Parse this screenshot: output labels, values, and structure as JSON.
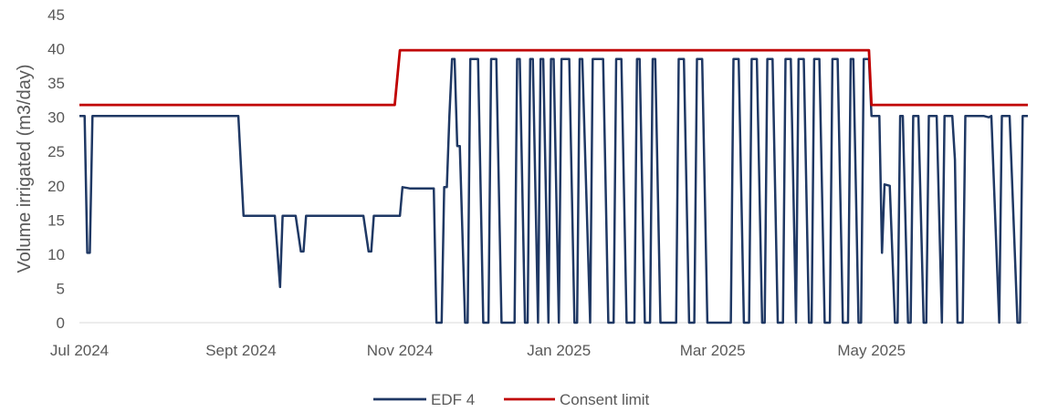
{
  "chart_data": {
    "type": "line",
    "title": "",
    "xlabel": "",
    "ylabel": "Volume irrigated (m3/day)",
    "ylim": [
      0,
      45
    ],
    "yticks": [
      0,
      5,
      10,
      15,
      20,
      25,
      30,
      35,
      40,
      45
    ],
    "xlim": [
      "2024-07-01",
      "2025-06-30"
    ],
    "xticks": [
      {
        "date": "2024-07-01",
        "label": "Jul 2024"
      },
      {
        "date": "2024-09-01",
        "label": "Sept 2024"
      },
      {
        "date": "2024-11-01",
        "label": "Nov 2024"
      },
      {
        "date": "2025-01-01",
        "label": "Jan 2025"
      },
      {
        "date": "2025-03-01",
        "label": "Mar 2025"
      },
      {
        "date": "2025-05-01",
        "label": "May 2025"
      }
    ],
    "grid": false,
    "legend": "bottom",
    "series": [
      {
        "name": "EDF 4",
        "color": "#1f3864",
        "points": [
          [
            "2024-07-01",
            30.2
          ],
          [
            "2024-07-03",
            30.2
          ],
          [
            "2024-07-04",
            10.2
          ],
          [
            "2024-07-05",
            10.2
          ],
          [
            "2024-07-06",
            30.2
          ],
          [
            "2024-08-31",
            30.2
          ],
          [
            "2024-09-02",
            15.6
          ],
          [
            "2024-09-14",
            15.6
          ],
          [
            "2024-09-16",
            5.2
          ],
          [
            "2024-09-17",
            15.6
          ],
          [
            "2024-09-22",
            15.6
          ],
          [
            "2024-09-24",
            10.4
          ],
          [
            "2024-09-25",
            10.4
          ],
          [
            "2024-09-26",
            15.6
          ],
          [
            "2024-10-18",
            15.6
          ],
          [
            "2024-10-20",
            10.4
          ],
          [
            "2024-10-21",
            10.4
          ],
          [
            "2024-10-22",
            15.6
          ],
          [
            "2024-10-30",
            15.6
          ],
          [
            "2024-11-01",
            15.6
          ],
          [
            "2024-11-02",
            19.8
          ],
          [
            "2024-11-05",
            19.6
          ],
          [
            "2024-11-13",
            19.6
          ],
          [
            "2024-11-14",
            19.6
          ],
          [
            "2024-11-15",
            0.0
          ],
          [
            "2024-11-17",
            0.0
          ],
          [
            "2024-11-18",
            19.8
          ],
          [
            "2024-11-19",
            19.8
          ],
          [
            "2024-11-20",
            30.2
          ],
          [
            "2024-11-21",
            38.5
          ],
          [
            "2024-11-22",
            38.5
          ],
          [
            "2024-11-23",
            25.8
          ],
          [
            "2024-11-24",
            25.8
          ],
          [
            "2024-11-26",
            0.0
          ],
          [
            "2024-11-27",
            0.0
          ],
          [
            "2024-11-28",
            38.5
          ],
          [
            "2024-12-01",
            38.5
          ],
          [
            "2024-12-03",
            0.0
          ],
          [
            "2024-12-05",
            0.0
          ],
          [
            "2024-12-06",
            38.5
          ],
          [
            "2024-12-08",
            38.5
          ],
          [
            "2024-12-10",
            0.0
          ],
          [
            "2024-12-15",
            0.0
          ],
          [
            "2024-12-16",
            38.5
          ],
          [
            "2024-12-17",
            38.5
          ],
          [
            "2024-12-19",
            0.0
          ],
          [
            "2024-12-20",
            0.0
          ],
          [
            "2024-12-21",
            38.5
          ],
          [
            "2024-12-22",
            38.5
          ],
          [
            "2024-12-24",
            0.0
          ],
          [
            "2024-12-25",
            38.5
          ],
          [
            "2024-12-26",
            38.5
          ],
          [
            "2024-12-28",
            0.0
          ],
          [
            "2024-12-29",
            38.5
          ],
          [
            "2024-12-30",
            38.5
          ],
          [
            "2025-01-01",
            0.0
          ],
          [
            "2025-01-02",
            38.5
          ],
          [
            "2025-01-05",
            38.5
          ],
          [
            "2025-01-07",
            0.0
          ],
          [
            "2025-01-08",
            0.0
          ],
          [
            "2025-01-09",
            38.5
          ],
          [
            "2025-01-10",
            38.5
          ],
          [
            "2025-01-13",
            0.0
          ],
          [
            "2025-01-14",
            38.5
          ],
          [
            "2025-01-18",
            38.5
          ],
          [
            "2025-01-20",
            0.0
          ],
          [
            "2025-01-22",
            0.0
          ],
          [
            "2025-01-23",
            38.5
          ],
          [
            "2025-01-25",
            38.5
          ],
          [
            "2025-01-27",
            0.0
          ],
          [
            "2025-01-30",
            0.0
          ],
          [
            "2025-01-31",
            38.5
          ],
          [
            "2025-02-01",
            38.5
          ],
          [
            "2025-02-03",
            0.0
          ],
          [
            "2025-02-05",
            0.0
          ],
          [
            "2025-02-06",
            38.5
          ],
          [
            "2025-02-07",
            38.5
          ],
          [
            "2025-02-09",
            0.0
          ],
          [
            "2025-02-15",
            0.0
          ],
          [
            "2025-02-16",
            38.5
          ],
          [
            "2025-02-18",
            38.5
          ],
          [
            "2025-02-20",
            0.0
          ],
          [
            "2025-02-22",
            0.0
          ],
          [
            "2025-02-23",
            38.5
          ],
          [
            "2025-02-25",
            38.5
          ],
          [
            "2025-02-27",
            0.0
          ],
          [
            "2025-03-01",
            0.0
          ],
          [
            "2025-03-08",
            0.0
          ],
          [
            "2025-03-09",
            38.5
          ],
          [
            "2025-03-11",
            38.5
          ],
          [
            "2025-03-13",
            0.0
          ],
          [
            "2025-03-15",
            0.0
          ],
          [
            "2025-03-16",
            38.5
          ],
          [
            "2025-03-18",
            38.5
          ],
          [
            "2025-03-20",
            0.0
          ],
          [
            "2025-03-21",
            0.0
          ],
          [
            "2025-03-22",
            38.5
          ],
          [
            "2025-03-24",
            38.5
          ],
          [
            "2025-03-26",
            0.0
          ],
          [
            "2025-03-28",
            0.0
          ],
          [
            "2025-03-29",
            38.5
          ],
          [
            "2025-03-31",
            38.5
          ],
          [
            "2025-04-02",
            0.0
          ],
          [
            "2025-04-03",
            38.5
          ],
          [
            "2025-04-05",
            38.5
          ],
          [
            "2025-04-07",
            0.0
          ],
          [
            "2025-04-08",
            0.0
          ],
          [
            "2025-04-09",
            38.5
          ],
          [
            "2025-04-11",
            38.5
          ],
          [
            "2025-04-13",
            0.0
          ],
          [
            "2025-04-15",
            0.0
          ],
          [
            "2025-04-16",
            38.5
          ],
          [
            "2025-04-18",
            38.5
          ],
          [
            "2025-04-20",
            0.0
          ],
          [
            "2025-04-22",
            0.0
          ],
          [
            "2025-04-23",
            38.5
          ],
          [
            "2025-04-24",
            38.5
          ],
          [
            "2025-04-26",
            0.0
          ],
          [
            "2025-04-27",
            0.0
          ],
          [
            "2025-04-28",
            38.5
          ],
          [
            "2025-04-30",
            38.5
          ],
          [
            "2025-05-01",
            30.2
          ],
          [
            "2025-05-04",
            30.2
          ],
          [
            "2025-05-05",
            10.2
          ],
          [
            "2025-05-06",
            20.2
          ],
          [
            "2025-05-08",
            20.0
          ],
          [
            "2025-05-10",
            0.0
          ],
          [
            "2025-05-11",
            0.0
          ],
          [
            "2025-05-12",
            30.2
          ],
          [
            "2025-05-13",
            30.2
          ],
          [
            "2025-05-15",
            0.0
          ],
          [
            "2025-05-16",
            0.0
          ],
          [
            "2025-05-17",
            30.2
          ],
          [
            "2025-05-19",
            30.2
          ],
          [
            "2025-05-21",
            0.0
          ],
          [
            "2025-05-22",
            0.0
          ],
          [
            "2025-05-23",
            30.2
          ],
          [
            "2025-05-26",
            30.2
          ],
          [
            "2025-05-28",
            0.0
          ],
          [
            "2025-05-29",
            30.2
          ],
          [
            "2025-06-01",
            30.2
          ],
          [
            "2025-06-02",
            23.8
          ],
          [
            "2025-06-03",
            0.0
          ],
          [
            "2025-06-05",
            0.0
          ],
          [
            "2025-06-06",
            30.2
          ],
          [
            "2025-06-13",
            30.2
          ],
          [
            "2025-06-15",
            30.0
          ],
          [
            "2025-06-16",
            30.2
          ],
          [
            "2025-06-19",
            0.0
          ],
          [
            "2025-06-20",
            30.2
          ],
          [
            "2025-06-23",
            30.2
          ],
          [
            "2025-06-25",
            10.2
          ],
          [
            "2025-06-26",
            0.0
          ],
          [
            "2025-06-27",
            0.0
          ],
          [
            "2025-06-28",
            30.2
          ],
          [
            "2025-06-30",
            30.2
          ]
        ]
      },
      {
        "name": "Consent limit",
        "color": "#c00000",
        "points": [
          [
            "2024-07-01",
            31.8
          ],
          [
            "2024-10-30",
            31.8
          ],
          [
            "2024-11-01",
            39.8
          ],
          [
            "2025-04-30",
            39.8
          ],
          [
            "2025-05-01",
            31.8
          ],
          [
            "2025-06-30",
            31.8
          ]
        ]
      }
    ]
  }
}
